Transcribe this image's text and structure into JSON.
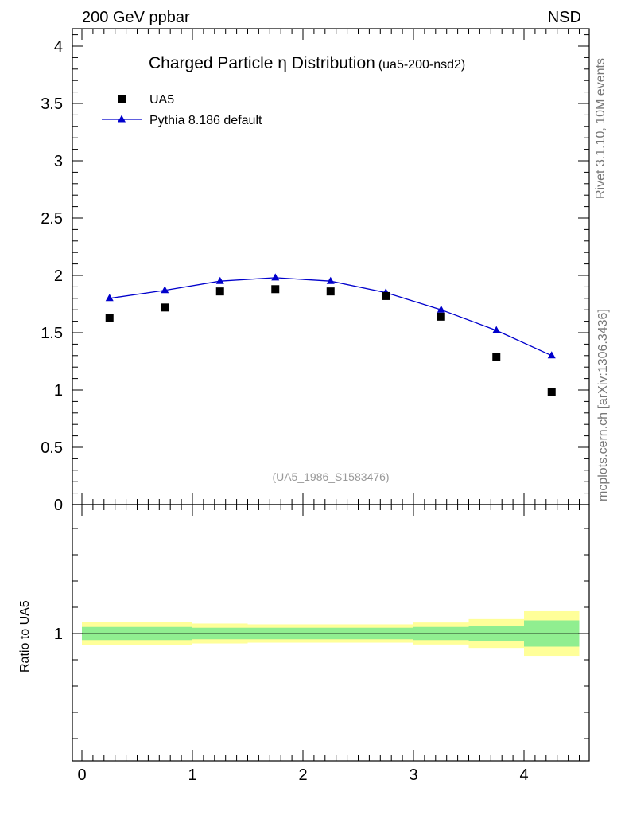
{
  "header": {
    "left": "200 GeV ppbar",
    "right": "NSD"
  },
  "side": {
    "top": "Rivet 3.1.10,  10M events",
    "bottom": "mcplots.cern.ch [arXiv:1306.3436]"
  },
  "chart_data": {
    "type": "scatter",
    "title": "Charged Particle η Distribution",
    "subtitle": "(ua5-200-nsd2)",
    "watermark": "(UA5_1986_S1583476)",
    "xlim": [
      0,
      4.5
    ],
    "ylim": [
      0,
      4.15
    ],
    "x_ticks": [
      "0",
      "1",
      "2",
      "3",
      "4"
    ],
    "y_ticks": [
      "0",
      "0.5",
      "1",
      "1.5",
      "2",
      "2.5",
      "3",
      "3.5",
      "4"
    ],
    "legend": {
      "placement": "top-left",
      "entries": [
        "UA5",
        "Pythia 8.186 default"
      ]
    },
    "series": [
      {
        "name": "UA5",
        "marker": "square",
        "color": "#000000",
        "x": [
          0.25,
          0.75,
          1.25,
          1.75,
          2.25,
          2.75,
          3.25,
          3.75,
          4.25
        ],
        "y": [
          1.63,
          1.72,
          1.86,
          1.88,
          1.86,
          1.82,
          1.64,
          1.29,
          0.98
        ]
      },
      {
        "name": "Pythia 8.186 default",
        "marker": "triangle",
        "color": "#0000cc",
        "x": [
          0.25,
          0.75,
          1.25,
          1.75,
          2.25,
          2.75,
          3.25,
          3.75,
          4.25
        ],
        "y": [
          1.8,
          1.87,
          1.95,
          1.98,
          1.95,
          1.85,
          1.7,
          1.52,
          1.3
        ]
      }
    ],
    "ratio": {
      "ylabel": "Ratio to UA5",
      "y_ticks": [
        "1"
      ],
      "ylim": [
        0.5,
        1.5
      ],
      "bin_edges": [
        0,
        0.5,
        1,
        1.5,
        2,
        2.5,
        3,
        3.5,
        4,
        4.5
      ],
      "stat_band": [
        0.025,
        0.025,
        0.022,
        0.022,
        0.022,
        0.022,
        0.025,
        0.03,
        0.05
      ],
      "total_band": [
        0.045,
        0.045,
        0.038,
        0.035,
        0.035,
        0.035,
        0.042,
        0.055,
        0.085
      ],
      "band_colors": {
        "stat": "#90ee90",
        "total": "#ffff99"
      }
    }
  }
}
